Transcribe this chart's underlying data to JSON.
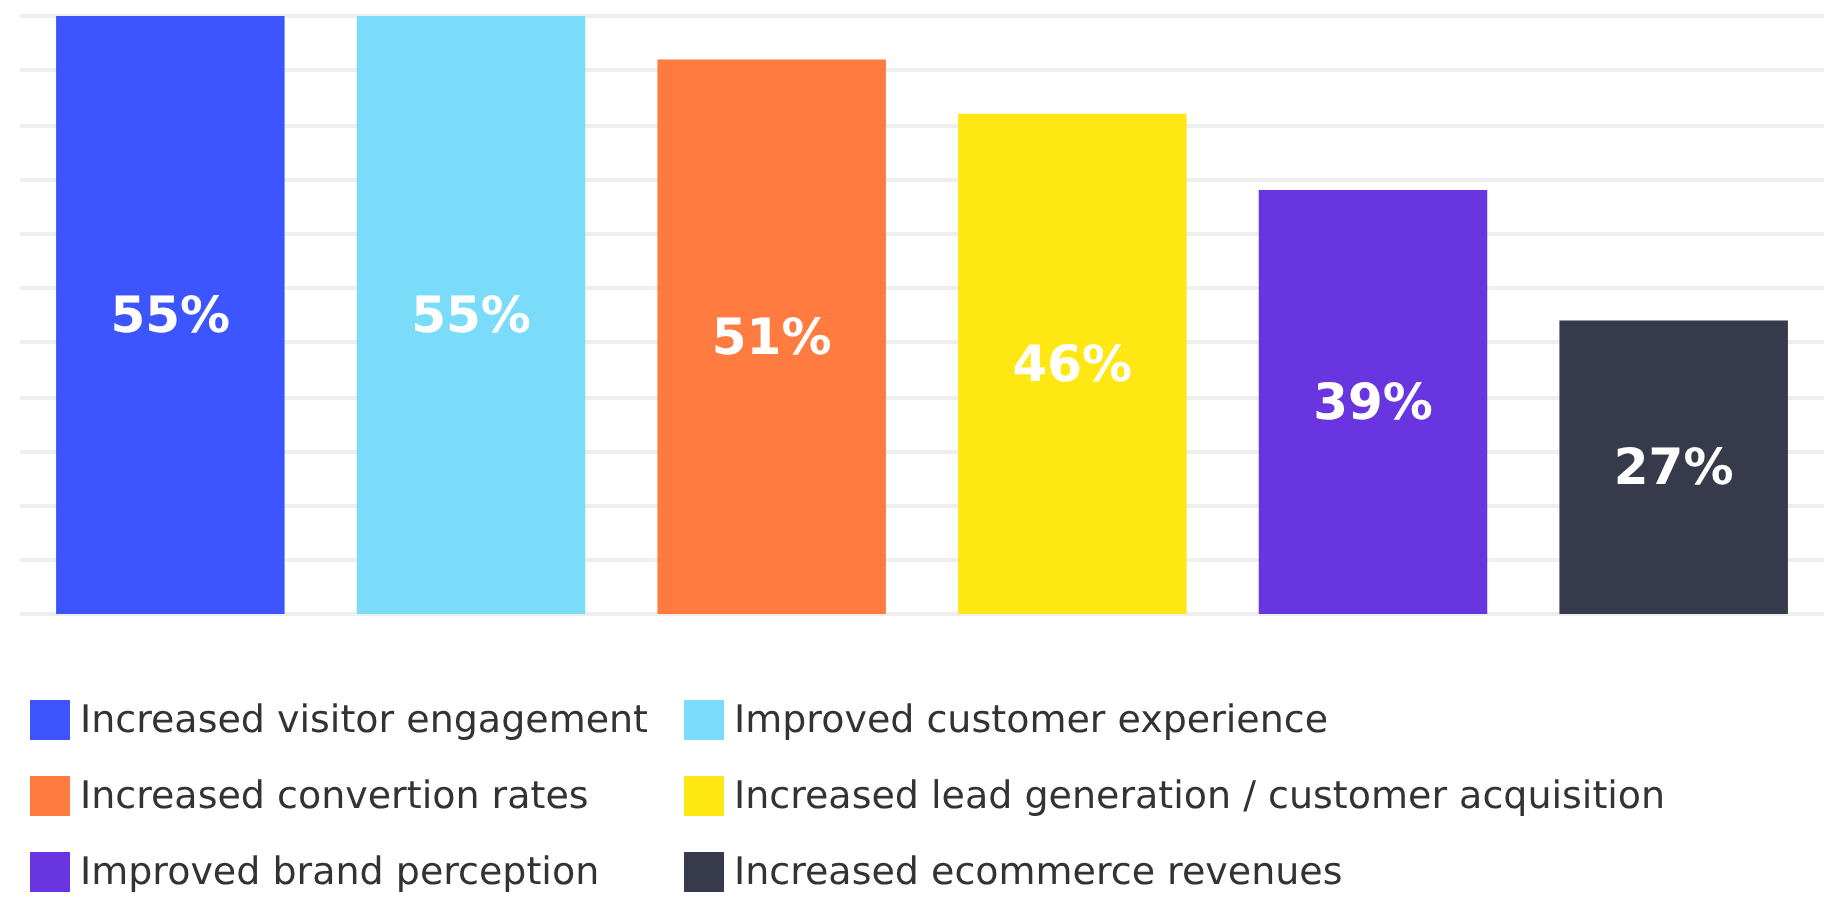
{
  "chart_data": {
    "type": "bar",
    "categories": [
      null,
      null,
      null,
      null,
      null,
      null
    ],
    "stacked": true,
    "grid": "y",
    "legend": "bottom",
    "series": [
      {
        "name": "Increased visitor engagement",
        "color": "#3d55fe",
        "values": [
          55,
          null,
          null,
          null,
          null,
          null
        ],
        "value_labels": [
          "55%",
          null,
          null,
          null,
          null,
          null
        ]
      },
      {
        "name": "Improved customer experience",
        "color": "#7bdcfa",
        "values": [
          null,
          55,
          null,
          null,
          null,
          null
        ],
        "value_labels": [
          null,
          "55%",
          null,
          null,
          null,
          null
        ]
      },
      {
        "name": "Increased convertion rates",
        "color": "#ff7b40",
        "values": [
          null,
          null,
          51,
          null,
          null,
          null
        ],
        "value_labels": [
          null,
          null,
          "51%",
          null,
          null,
          null
        ]
      },
      {
        "name": "Increased lead generation / customer acquisition",
        "color": "#ffe714",
        "values": [
          null,
          null,
          null,
          46,
          null,
          null
        ],
        "value_labels": [
          null,
          null,
          null,
          "46%",
          null,
          null
        ]
      },
      {
        "name": "Improved brand perception",
        "color": "#6935e0",
        "values": [
          null,
          null,
          null,
          null,
          39,
          null
        ],
        "value_labels": [
          null,
          null,
          null,
          null,
          "39%",
          null
        ]
      },
      {
        "name": "Increased ecommerce revenues",
        "color": "#373a4a",
        "values": [
          null,
          null,
          null,
          null,
          null,
          27
        ],
        "value_labels": [
          null,
          null,
          null,
          null,
          null,
          "27%"
        ]
      }
    ]
  }
}
